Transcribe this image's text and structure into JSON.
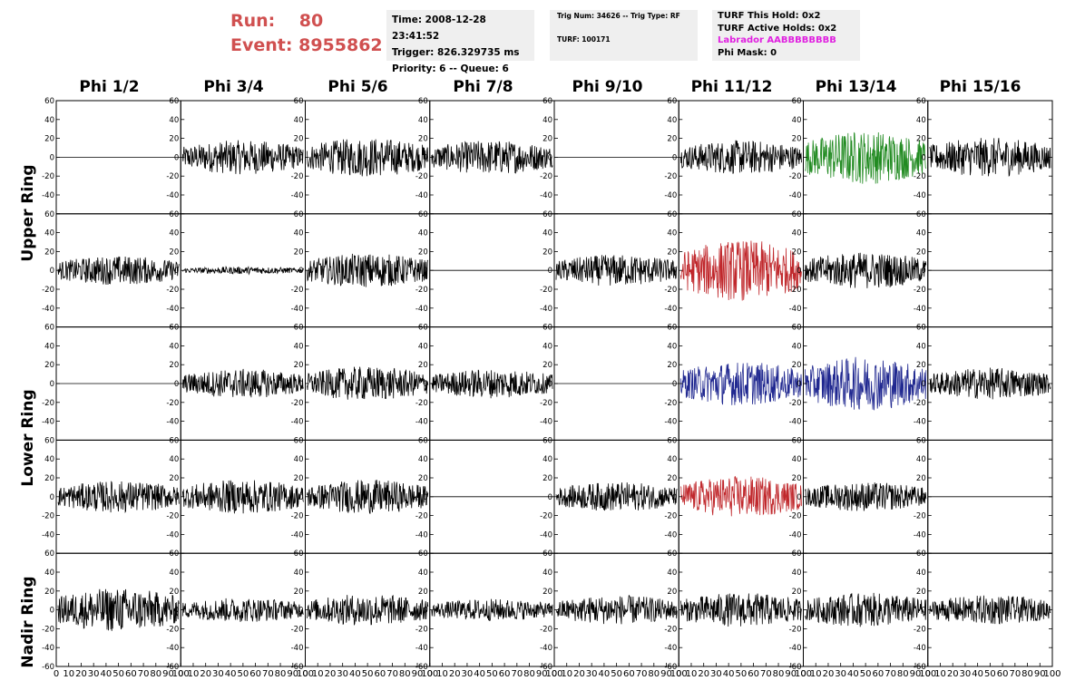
{
  "header": {
    "run_label": "Run:",
    "run_value": "80",
    "event_label": "Event:",
    "event_value": "8955862"
  },
  "info": {
    "time": "Time: 2008-12-28 23:41:52",
    "trigger": "Trigger: 826.329735 ms",
    "priority": "Priority: 6 -- Queue: 6",
    "trig_num": "Trig Num: 34626 -- Trig Type: RF",
    "turf": "TURF: 100171",
    "turf_this_hold": "TURF This Hold: 0x2",
    "turf_active_holds": "TURF Active Holds: 0x2",
    "labrador": "Labrador AABBBBBBBB",
    "phi_mask": "Phi Mask: 0"
  },
  "colors": {
    "run_text": "#d05050",
    "labrador_text": "#e020e0",
    "trace_default": "#000000",
    "trace_green": "#228b22",
    "trace_red": "#c0282c",
    "trace_blue": "#202890",
    "info_box_bg": "#efefef"
  },
  "chart_data": {
    "type": "line",
    "columns": [
      "Phi 1/2",
      "Phi 3/4",
      "Phi 5/6",
      "Phi 7/8",
      "Phi 9/10",
      "Phi 11/12",
      "Phi 13/14",
      "Phi 15/16"
    ],
    "row_labels": [
      "Upper Ring",
      "Lower Ring",
      "Nadir Ring"
    ],
    "ylim": [
      -60,
      60
    ],
    "yticks": [
      -60,
      -40,
      -20,
      0,
      20,
      40,
      60
    ],
    "xlim": [
      0,
      100
    ],
    "xticks": [
      0,
      10,
      20,
      30,
      40,
      50,
      60,
      70,
      80,
      90,
      100
    ],
    "samples": 260,
    "panel_rows": [
      {
        "ring": "Upper Ring",
        "panels": [
          {
            "amplitude": 0,
            "color": "trace_default"
          },
          {
            "amplitude": 14,
            "color": "trace_default"
          },
          {
            "amplitude": 16,
            "color": "trace_default"
          },
          {
            "amplitude": 14,
            "color": "trace_default"
          },
          {
            "amplitude": 0,
            "color": "trace_default"
          },
          {
            "amplitude": 14,
            "color": "trace_default"
          },
          {
            "amplitude": 22,
            "color": "trace_green"
          },
          {
            "amplitude": 16,
            "color": "trace_default"
          }
        ]
      },
      {
        "ring": "Upper Ring",
        "panels": [
          {
            "amplitude": 12,
            "color": "trace_default"
          },
          {
            "amplitude": 3,
            "color": "trace_default"
          },
          {
            "amplitude": 14,
            "color": "trace_default"
          },
          {
            "amplitude": 0,
            "color": "trace_default"
          },
          {
            "amplitude": 13,
            "color": "trace_default"
          },
          {
            "amplitude": 25,
            "color": "trace_red"
          },
          {
            "amplitude": 15,
            "color": "trace_default"
          },
          {
            "amplitude": 0,
            "color": "trace_default"
          }
        ]
      },
      {
        "ring": "Lower Ring",
        "panels": [
          {
            "amplitude": 0,
            "color": "trace_default"
          },
          {
            "amplitude": 12,
            "color": "trace_default"
          },
          {
            "amplitude": 14,
            "color": "trace_default"
          },
          {
            "amplitude": 12,
            "color": "trace_default"
          },
          {
            "amplitude": 0,
            "color": "trace_default"
          },
          {
            "amplitude": 18,
            "color": "trace_blue"
          },
          {
            "amplitude": 22,
            "color": "trace_blue"
          },
          {
            "amplitude": 13,
            "color": "trace_default"
          }
        ]
      },
      {
        "ring": "Lower Ring",
        "panels": [
          {
            "amplitude": 13,
            "color": "trace_default"
          },
          {
            "amplitude": 14,
            "color": "trace_default"
          },
          {
            "amplitude": 14,
            "color": "trace_default"
          },
          {
            "amplitude": 0,
            "color": "trace_default"
          },
          {
            "amplitude": 12,
            "color": "trace_default"
          },
          {
            "amplitude": 17,
            "color": "trace_red"
          },
          {
            "amplitude": 12,
            "color": "trace_default"
          },
          {
            "amplitude": 0,
            "color": "trace_default"
          }
        ]
      },
      {
        "ring": "Nadir Ring",
        "panels": [
          {
            "amplitude": 18,
            "color": "trace_default"
          },
          {
            "amplitude": 10,
            "color": "trace_default"
          },
          {
            "amplitude": 13,
            "color": "trace_default"
          },
          {
            "amplitude": 9,
            "color": "trace_default"
          },
          {
            "amplitude": 12,
            "color": "trace_default"
          },
          {
            "amplitude": 14,
            "color": "trace_default"
          },
          {
            "amplitude": 14,
            "color": "trace_default"
          },
          {
            "amplitude": 12,
            "color": "trace_default"
          }
        ]
      }
    ]
  }
}
